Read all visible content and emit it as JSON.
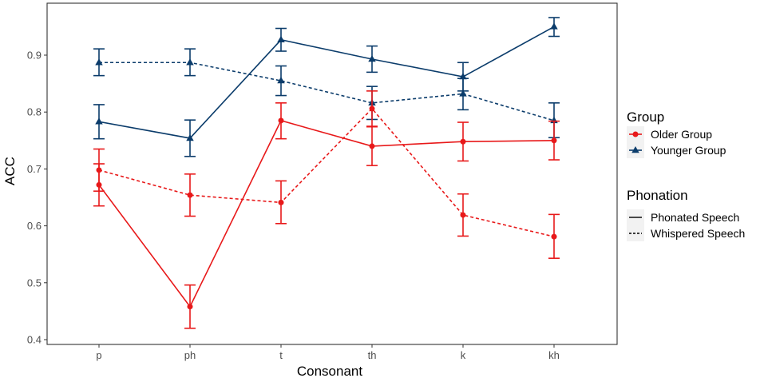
{
  "chart_data": {
    "type": "line",
    "title": "",
    "xlabel": "Consonant",
    "ylabel": "ACC",
    "categories": [
      "p",
      "ph",
      "t",
      "th",
      "k",
      "kh"
    ],
    "ylim": [
      0.4,
      0.98
    ],
    "yticks": [
      "0.4",
      "0.5",
      "0.6",
      "0.7",
      "0.8",
      "0.9"
    ],
    "grid": false,
    "legend_position": "right",
    "series": [
      {
        "name": "Younger Group - Phonated Speech",
        "group": "Younger Group",
        "phonation": "Phonated Speech",
        "color": "#0b3c6b",
        "marker": "triangle",
        "dash": "solid",
        "values": [
          0.783,
          0.754,
          0.927,
          0.893,
          0.862,
          0.95
        ],
        "lower": [
          0.753,
          0.722,
          0.907,
          0.87,
          0.837,
          0.933
        ],
        "upper": [
          0.813,
          0.786,
          0.947,
          0.916,
          0.887,
          0.966
        ]
      },
      {
        "name": "Younger Group - Whispered Speech",
        "group": "Younger Group",
        "phonation": "Whispered Speech",
        "color": "#0b3c6b",
        "marker": "triangle",
        "dash": "dashed",
        "values": [
          0.887,
          0.887,
          0.855,
          0.816,
          0.832,
          0.785
        ],
        "lower": [
          0.864,
          0.864,
          0.829,
          0.787,
          0.804,
          0.755
        ],
        "upper": [
          0.911,
          0.911,
          0.881,
          0.845,
          0.859,
          0.816
        ]
      },
      {
        "name": "Older Group - Phonated Speech",
        "group": "Older Group",
        "phonation": "Phonated Speech",
        "color": "#e8191a",
        "marker": "circle",
        "dash": "solid",
        "values": [
          0.672,
          0.458,
          0.785,
          0.74,
          0.748,
          0.75
        ],
        "lower": [
          0.635,
          0.42,
          0.753,
          0.706,
          0.714,
          0.716
        ],
        "upper": [
          0.709,
          0.496,
          0.816,
          0.774,
          0.782,
          0.784
        ]
      },
      {
        "name": "Older Group - Whispered Speech",
        "group": "Older Group",
        "phonation": "Whispered Speech",
        "color": "#e8191a",
        "marker": "circle",
        "dash": "dashed",
        "values": [
          0.698,
          0.654,
          0.641,
          0.806,
          0.619,
          0.581
        ],
        "lower": [
          0.661,
          0.617,
          0.604,
          0.775,
          0.582,
          0.543
        ],
        "upper": [
          0.735,
          0.691,
          0.679,
          0.837,
          0.656,
          0.62
        ]
      }
    ],
    "legend": {
      "group_title": "Group",
      "group_items": [
        {
          "label": "Older Group",
          "color": "#e8191a",
          "marker": "circle"
        },
        {
          "label": "Younger Group",
          "color": "#0b3c6b",
          "marker": "triangle"
        }
      ],
      "phonation_title": "Phonation",
      "phonation_items": [
        {
          "label": "Phonated Speech",
          "dash": "solid"
        },
        {
          "label": "Whispered Speech",
          "dash": "dashed"
        }
      ]
    }
  }
}
